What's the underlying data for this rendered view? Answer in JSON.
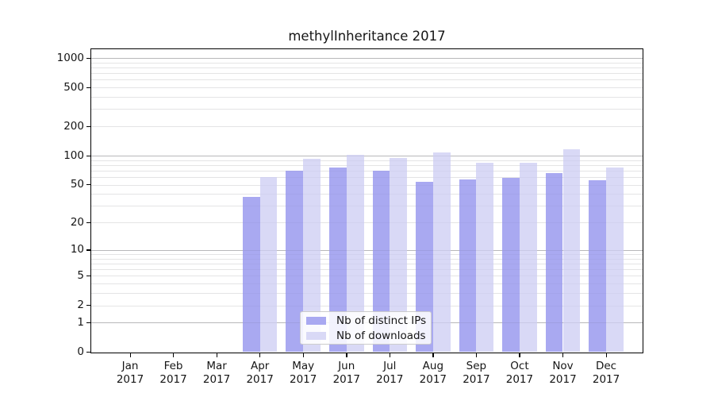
{
  "title": "methylInheritance 2017",
  "chart_data": {
    "type": "bar",
    "title": "methylInheritance 2017",
    "categories": [
      "Jan 2017",
      "Feb 2017",
      "Mar 2017",
      "Apr 2017",
      "May 2017",
      "Jun 2017",
      "Jul 2017",
      "Aug 2017",
      "Sep 2017",
      "Oct 2017",
      "Nov 2017",
      "Dec 2017"
    ],
    "series": [
      {
        "name": "Nb of distinct IPs",
        "color": "#a9a9f1",
        "values": [
          0,
          0,
          0,
          37,
          70,
          76,
          70,
          54,
          57,
          59,
          66,
          56
        ]
      },
      {
        "name": "Nb of downloads",
        "color": "#d9d9f6",
        "values": [
          0,
          0,
          0,
          60,
          92,
          102,
          95,
          108,
          85,
          85,
          117,
          75
        ]
      }
    ],
    "y_ticks": [
      0,
      1,
      2,
      5,
      10,
      20,
      50,
      100,
      200,
      500,
      1000
    ],
    "y_scale": "log10(value+1)",
    "ylim": [
      0,
      1000
    ],
    "xlabel": "",
    "ylabel": "",
    "grid": "horizontal, major lines at powers of 10 with light minor lines",
    "legend_position": "lower center inside plot"
  },
  "colors": {
    "distinct_ips_bar": "#a9a9f1",
    "downloads_bar": "#d9d9f6",
    "major_gridline": "#c6c6c6",
    "minor_gridline": "#ececec",
    "axis": "#000000",
    "background": "#ffffff"
  }
}
